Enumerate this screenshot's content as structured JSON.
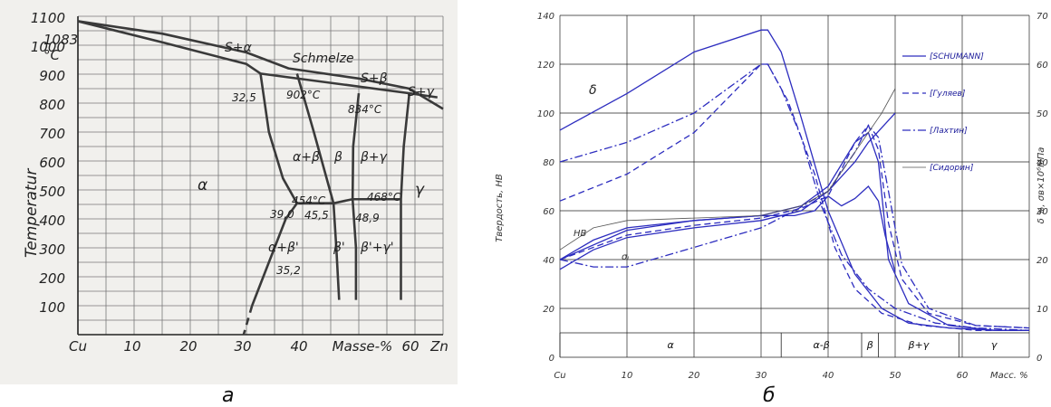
{
  "captions": {
    "left": "а",
    "right": "б"
  },
  "phase_diagram": {
    "ylabel": "Temperatur",
    "y_ticks": [
      "100",
      "200",
      "300",
      "400",
      "500",
      "600",
      "700",
      "800",
      "900",
      "1000",
      "1100"
    ],
    "x_ticks": [
      "Cu",
      "10",
      "20",
      "30",
      "40",
      "Masse-%",
      "60",
      "Zn"
    ],
    "top_tick": "1083",
    "top_unit": "°C",
    "labels": {
      "s_alpha": "S+α",
      "schmelze": "Schmelze",
      "s_beta": "S+β",
      "s_gamma": "S+γ",
      "t902": "902°C",
      "t834": "834°C",
      "c325": "32,5",
      "alpha": "α",
      "alpha_beta": "α+β",
      "beta": "β",
      "beta_gamma": "β+γ",
      "gamma": "γ",
      "t454": "454°C",
      "t468": "468°C",
      "c390": "39,0",
      "c455": "45,5",
      "c489": "48,9",
      "alpha_beta_p": "α+β'",
      "beta_p": "β'",
      "beta_gamma_p": "β'+γ'",
      "c352": "35,2"
    }
  },
  "chart_data": {
    "type": "line",
    "ylabel": "Твердость, НВ",
    "y2label": "δ %, σв×10⁶МПа",
    "x_ticks": [
      "Cu",
      "10",
      "20",
      "30",
      "40",
      "50",
      "60",
      "Масс. %"
    ],
    "x_values": [
      0,
      10,
      20,
      30,
      40,
      50,
      60
    ],
    "xlim": [
      0,
      70
    ],
    "ylim": [
      0,
      140
    ],
    "y_ticks": [
      0,
      20,
      40,
      60,
      80,
      100,
      120,
      140
    ],
    "y2lim": [
      0,
      70
    ],
    "y2_ticks": [
      0,
      10,
      20,
      30,
      40,
      50,
      60,
      70
    ],
    "legend_position": "top-right",
    "legend": [
      "[SCHUMANN]",
      "[Гуляев]",
      "[Лахтин]",
      "[Сидорин]"
    ],
    "colors": {
      "series": "#2d2dbf",
      "thin": "#555555"
    },
    "annotations": {
      "delta": "δ",
      "hb": "НВ",
      "sigma": "σᵢ"
    },
    "zones": [
      {
        "label": "α",
        "x": [
          0,
          33
        ]
      },
      {
        "label": "α-β",
        "x": [
          33,
          45
        ]
      },
      {
        "label": "β",
        "x": [
          45,
          47.5
        ]
      },
      {
        "label": "β+γ",
        "x": [
          47.5,
          59.5
        ]
      },
      {
        "label": "γ",
        "x": [
          59.5,
          70
        ]
      }
    ],
    "series": [
      {
        "name": "[SCHUMANN]",
        "style": "solid",
        "axis": "left",
        "data": [
          [
            0,
            93
          ],
          [
            10,
            108
          ],
          [
            20,
            125
          ],
          [
            30,
            134
          ],
          [
            31,
            134
          ],
          [
            33,
            125
          ],
          [
            36,
            98
          ],
          [
            40,
            60
          ],
          [
            44,
            34
          ],
          [
            48,
            20
          ],
          [
            52,
            14
          ],
          [
            58,
            12
          ],
          [
            65,
            11
          ],
          [
            70,
            11
          ]
        ]
      },
      {
        "name": "[SCHUMANN]",
        "style": "solid",
        "axis": "left",
        "data": [
          [
            0,
            36
          ],
          [
            5,
            44
          ],
          [
            10,
            49
          ],
          [
            20,
            53
          ],
          [
            30,
            56
          ],
          [
            36,
            60
          ],
          [
            40,
            68
          ],
          [
            44,
            80
          ],
          [
            46,
            88
          ],
          [
            48,
            94
          ],
          [
            50,
            100
          ]
        ]
      },
      {
        "name": "[SCHUMANN]",
        "style": "solid",
        "axis": "left",
        "data": [
          [
            0,
            40
          ],
          [
            5,
            48
          ],
          [
            10,
            53
          ],
          [
            20,
            56
          ],
          [
            30,
            58
          ],
          [
            35,
            58
          ],
          [
            38,
            60
          ],
          [
            40,
            66
          ],
          [
            42,
            62
          ],
          [
            44,
            65
          ],
          [
            46,
            70
          ],
          [
            47.5,
            64
          ],
          [
            48.5,
            50
          ],
          [
            50,
            35
          ]
        ]
      },
      {
        "name": "[SCHUMANN]",
        "style": "solid",
        "axis": "left",
        "data": [
          [
            0,
            40
          ],
          [
            10,
            52
          ],
          [
            20,
            56
          ],
          [
            30,
            58
          ],
          [
            36,
            62
          ],
          [
            40,
            70
          ],
          [
            44,
            88
          ],
          [
            46,
            92
          ],
          [
            47.5,
            80
          ],
          [
            49,
            40
          ],
          [
            52,
            22
          ],
          [
            58,
            13
          ],
          [
            65,
            11
          ],
          [
            70,
            11
          ]
        ]
      },
      {
        "name": "[Гуляев]",
        "style": "dash",
        "axis": "left",
        "data": [
          [
            0,
            64
          ],
          [
            10,
            75
          ],
          [
            20,
            92
          ],
          [
            30,
            120
          ],
          [
            31,
            120
          ],
          [
            34,
            105
          ],
          [
            38,
            75
          ],
          [
            41,
            45
          ],
          [
            44,
            28
          ],
          [
            48,
            18
          ],
          [
            54,
            13
          ],
          [
            62,
            11
          ],
          [
            70,
            11
          ]
        ]
      },
      {
        "name": "[Гуляев]",
        "style": "dash",
        "axis": "left",
        "data": [
          [
            0,
            40
          ],
          [
            10,
            50
          ],
          [
            20,
            54
          ],
          [
            30,
            57
          ],
          [
            36,
            61
          ],
          [
            40,
            66
          ],
          [
            44,
            88
          ],
          [
            46,
            95
          ],
          [
            47.5,
            85
          ],
          [
            49,
            55
          ],
          [
            51,
            32
          ],
          [
            55,
            18
          ],
          [
            62,
            13
          ],
          [
            70,
            12
          ]
        ]
      },
      {
        "name": "[Лахтин]",
        "style": "dashdot",
        "axis": "left",
        "data": [
          [
            0,
            80
          ],
          [
            10,
            88
          ],
          [
            20,
            100
          ],
          [
            30,
            120
          ],
          [
            31,
            120
          ],
          [
            33,
            110
          ],
          [
            36,
            90
          ],
          [
            39,
            62
          ],
          [
            42,
            42
          ],
          [
            46,
            28
          ],
          [
            50,
            20
          ],
          [
            56,
            14
          ],
          [
            62,
            12
          ],
          [
            70,
            11
          ]
        ]
      },
      {
        "name": "[Лахтин]",
        "style": "dashdot",
        "axis": "left",
        "data": [
          [
            0,
            40
          ],
          [
            5,
            37
          ],
          [
            10,
            37
          ],
          [
            20,
            45
          ],
          [
            30,
            53
          ],
          [
            35,
            60
          ],
          [
            40,
            68
          ],
          [
            44,
            84
          ],
          [
            46,
            95
          ],
          [
            47.5,
            90
          ],
          [
            49,
            68
          ],
          [
            51,
            38
          ],
          [
            55,
            20
          ],
          [
            62,
            13
          ],
          [
            70,
            12
          ]
        ]
      },
      {
        "name": "[Сидорин]",
        "style": "thin",
        "axis": "left",
        "data": [
          [
            0,
            44
          ],
          [
            5,
            53
          ],
          [
            10,
            56
          ],
          [
            20,
            57
          ],
          [
            30,
            58
          ],
          [
            36,
            62
          ],
          [
            40,
            68
          ],
          [
            45,
            88
          ],
          [
            48,
            100
          ],
          [
            50,
            110
          ]
        ]
      }
    ]
  }
}
